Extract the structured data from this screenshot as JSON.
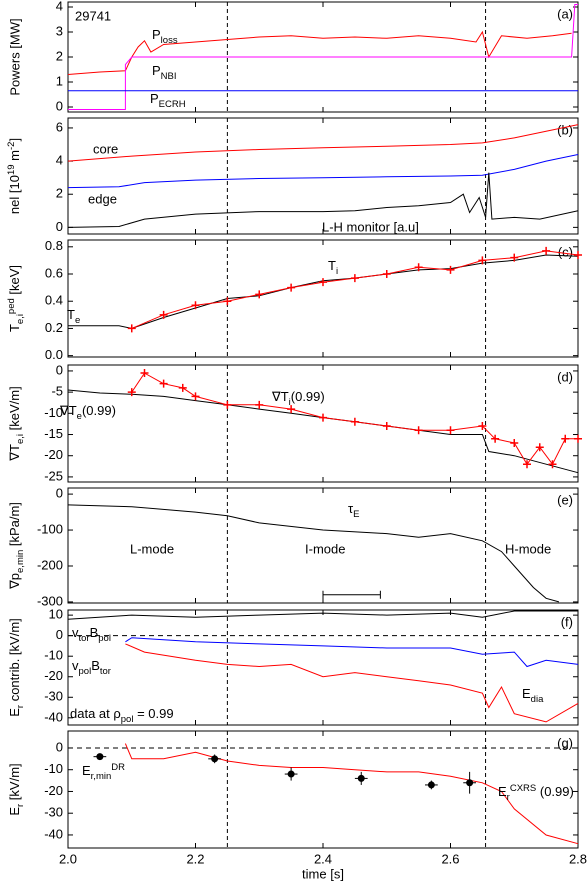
{
  "chart_data": [
    {
      "type": "line",
      "label": "(a)",
      "ylabel": "Powers [MW]",
      "xlim": [
        2,
        2.8
      ],
      "xticks": [
        2,
        2.2,
        2.4,
        2.6,
        2.8
      ],
      "ylim": [
        -0.2,
        4.2
      ],
      "yticks": [
        0,
        1,
        2,
        3,
        4
      ],
      "vlines": [
        2.25,
        2.655
      ],
      "series": [
        {
          "name": [
            [
              "P"
            ],
            [
              "loss",
              "sub"
            ]
          ],
          "color": "#ff0000",
          "x": [
            2.0,
            2.05,
            2.09,
            2.1,
            2.11,
            2.12,
            2.13,
            2.15,
            2.2,
            2.25,
            2.3,
            2.35,
            2.4,
            2.45,
            2.5,
            2.55,
            2.6,
            2.64,
            2.65,
            2.66,
            2.68,
            2.72,
            2.76,
            2.79
          ],
          "values": [
            1.3,
            1.4,
            1.45,
            2.0,
            2.4,
            2.65,
            2.2,
            2.5,
            2.6,
            2.7,
            2.8,
            2.85,
            2.75,
            2.8,
            2.75,
            2.85,
            2.75,
            2.6,
            3.0,
            2.0,
            2.85,
            2.75,
            2.85,
            2.95
          ]
        },
        {
          "name": [
            [
              "P"
            ],
            [
              "NBI",
              "sub"
            ]
          ],
          "color": "#ff00ff",
          "x": [
            2.0,
            2.09,
            2.09,
            2.1,
            2.79,
            2.795,
            2.8
          ],
          "values": [
            -0.1,
            -0.1,
            1.7,
            2.0,
            2.0,
            4.1,
            4.1
          ]
        },
        {
          "name": [
            [
              "P"
            ],
            [
              "ECRH",
              "sub"
            ]
          ],
          "color": "#0000ff",
          "x": [
            2.0,
            2.8
          ],
          "values": [
            0.65,
            0.65
          ]
        }
      ],
      "annotations": [
        {
          "text": "29741",
          "color": "#000000"
        }
      ]
    },
    {
      "type": "line",
      "label": "(b)",
      "ylabel": [
        [
          "nel [10"
        ],
        [
          "19",
          "sup"
        ],
        [
          " m"
        ],
        [
          "-2",
          "sup"
        ],
        [
          "]"
        ]
      ],
      "xlim": [
        2,
        2.8
      ],
      "xticks": [
        2,
        2.2,
        2.4,
        2.6,
        2.8
      ],
      "ylim": [
        -0.4,
        6.6
      ],
      "yticks": [
        0,
        2,
        4,
        6
      ],
      "vlines": [
        2.25,
        2.655
      ],
      "series": [
        {
          "name": "core",
          "color": "#ff0000",
          "x": [
            2.0,
            2.1,
            2.2,
            2.3,
            2.4,
            2.5,
            2.6,
            2.65,
            2.7,
            2.75,
            2.8
          ],
          "values": [
            4.0,
            4.3,
            4.55,
            4.7,
            4.8,
            4.9,
            5.0,
            5.1,
            5.4,
            5.8,
            6.2
          ]
        },
        {
          "name": "edge",
          "color": "#0000ff",
          "x": [
            2.0,
            2.08,
            2.12,
            2.2,
            2.3,
            2.4,
            2.5,
            2.6,
            2.65,
            2.7,
            2.75,
            2.8
          ],
          "values": [
            2.4,
            2.45,
            2.7,
            2.85,
            2.95,
            3.0,
            3.05,
            3.1,
            3.15,
            3.5,
            4.0,
            4.4
          ]
        },
        {
          "name": "L-H monitor [a.u]",
          "color": "#000000",
          "x": [
            2.0,
            2.08,
            2.12,
            2.2,
            2.3,
            2.4,
            2.45,
            2.5,
            2.55,
            2.6,
            2.62,
            2.63,
            2.645,
            2.655,
            2.66,
            2.665,
            2.7,
            2.74,
            2.8
          ],
          "values": [
            0,
            0.05,
            0.5,
            0.8,
            0.95,
            0.95,
            1.0,
            1.2,
            1.3,
            1.5,
            2.0,
            0.9,
            1.8,
            0.6,
            3.3,
            0.5,
            0.6,
            0.5,
            1.0
          ]
        }
      ]
    },
    {
      "type": "line",
      "label": "(c)",
      "ylabel": [
        [
          "T"
        ],
        [
          "e,i",
          "sub"
        ],
        [
          "ped",
          "sup"
        ],
        [
          " [keV]"
        ]
      ],
      "xlim": [
        2,
        2.8
      ],
      "xticks": [
        2,
        2.2,
        2.4,
        2.6,
        2.8
      ],
      "ylim": [
        -0.01,
        0.85
      ],
      "yticks": [
        {
          "value": 0,
          "label": "0.0"
        },
        {
          "value": 0.2,
          "label": "0.2"
        },
        {
          "value": 0.4,
          "label": "0.4"
        },
        {
          "value": 0.6,
          "label": "0.6"
        },
        {
          "value": 0.8,
          "label": "0.8"
        }
      ],
      "vlines": [
        2.25,
        2.655
      ],
      "series": [
        {
          "name": [
            [
              "T"
            ],
            [
              "e",
              "sub"
            ]
          ],
          "color": "#000000",
          "x": [
            2.0,
            2.08,
            2.1,
            2.15,
            2.2,
            2.25,
            2.3,
            2.35,
            2.4,
            2.45,
            2.5,
            2.55,
            2.6,
            2.65,
            2.7,
            2.75,
            2.8
          ],
          "values": [
            0.22,
            0.22,
            0.2,
            0.28,
            0.35,
            0.42,
            0.44,
            0.5,
            0.55,
            0.57,
            0.6,
            0.63,
            0.64,
            0.68,
            0.7,
            0.74,
            0.73
          ]
        },
        {
          "name": [
            [
              "T"
            ],
            [
              "i",
              "sub"
            ]
          ],
          "color": "#ff0000",
          "marker": "+",
          "x": [
            2.1,
            2.15,
            2.2,
            2.25,
            2.3,
            2.35,
            2.4,
            2.45,
            2.5,
            2.55,
            2.6,
            2.65,
            2.7,
            2.75,
            2.8
          ],
          "values": [
            0.2,
            0.3,
            0.37,
            0.4,
            0.45,
            0.5,
            0.54,
            0.57,
            0.6,
            0.65,
            0.63,
            0.7,
            0.72,
            0.77,
            0.74
          ]
        }
      ]
    },
    {
      "type": "line",
      "label": "(d)",
      "ylabel": [
        [
          "∇T"
        ],
        [
          "e,i",
          "sub"
        ],
        [
          " [keV/m]"
        ]
      ],
      "xlim": [
        2,
        2.8
      ],
      "xticks": [
        2,
        2.2,
        2.4,
        2.6,
        2.8
      ],
      "ylim": [
        -26.2,
        1.4
      ],
      "yticks": [
        0,
        -5,
        -10,
        -15,
        -20,
        -25
      ],
      "vlines": [
        2.25,
        2.655
      ],
      "series": [
        {
          "name": [
            [
              "∇T"
            ],
            [
              "e",
              "sub"
            ],
            [
              "(0.99)"
            ]
          ],
          "color": "#000000",
          "x": [
            2.0,
            2.05,
            2.1,
            2.15,
            2.2,
            2.25,
            2.3,
            2.35,
            2.4,
            2.45,
            2.5,
            2.55,
            2.6,
            2.65,
            2.66,
            2.7,
            2.75,
            2.8
          ],
          "values": [
            -4.5,
            -5.2,
            -5.5,
            -6,
            -7,
            -8,
            -9,
            -10,
            -11,
            -12,
            -13,
            -14,
            -15,
            -15,
            -19,
            -20,
            -22,
            -24
          ]
        },
        {
          "name": [
            [
              "∇T"
            ],
            [
              "i",
              "sub"
            ],
            [
              "(0.99)"
            ]
          ],
          "color": "#ff0000",
          "marker": "+",
          "x": [
            2.1,
            2.12,
            2.15,
            2.18,
            2.2,
            2.25,
            2.3,
            2.35,
            2.4,
            2.45,
            2.5,
            2.55,
            2.6,
            2.65,
            2.67,
            2.7,
            2.72,
            2.74,
            2.76,
            2.78,
            2.8
          ],
          "values": [
            -5,
            -0.5,
            -3,
            -4,
            -6,
            -8,
            -8,
            -9,
            -11,
            -12,
            -13,
            -14,
            -14,
            -13,
            -16,
            -17,
            -22,
            -18,
            -22,
            -16,
            -16
          ]
        }
      ]
    },
    {
      "type": "line",
      "label": "(e)",
      "ylabel": [
        [
          "∇p"
        ],
        [
          "e,min",
          "sub"
        ],
        [
          " [kPa/m]"
        ]
      ],
      "xlim": [
        2,
        2.8
      ],
      "xticks": [
        2,
        2.2,
        2.4,
        2.6,
        2.8
      ],
      "ylim": [
        -303,
        17
      ],
      "yticks": [
        0,
        -100,
        -200,
        -300
      ],
      "vlines": [
        2.25,
        2.655
      ],
      "series": [
        {
          "color": "#000000",
          "x": [
            2.0,
            2.1,
            2.2,
            2.25,
            2.3,
            2.4,
            2.5,
            2.55,
            2.6,
            2.65,
            2.68,
            2.7,
            2.73,
            2.75,
            2.77
          ],
          "values": [
            -30,
            -35,
            -50,
            -60,
            -80,
            -100,
            -110,
            -120,
            -110,
            -130,
            -160,
            -200,
            -260,
            -290,
            -300
          ]
        }
      ],
      "annotations": [
        {
          "text": "L-mode",
          "color": "#000000"
        },
        {
          "text": "I-mode",
          "color": "#000000"
        },
        {
          "text": "H-mode",
          "color": "#000000"
        },
        {
          "text": [
            [
              "τ"
            ],
            [
              "E",
              "sub"
            ]
          ],
          "color": "#000000"
        }
      ],
      "scale_bar": {
        "x": [
          2.4,
          2.49
        ],
        "y": -280
      }
    },
    {
      "type": "line",
      "label": "(f)",
      "ylabel": [
        [
          "E"
        ],
        [
          "r",
          "sub"
        ],
        [
          " contrib. [kV/m]"
        ]
      ],
      "xlim": [
        2,
        2.8
      ],
      "xticks": [
        2,
        2.2,
        2.4,
        2.6,
        2.8
      ],
      "ylim": [
        -43.5,
        12.5
      ],
      "yticks": [
        10,
        0,
        -10,
        -20,
        -30,
        -40
      ],
      "vlines": [
        2.25,
        2.655
      ],
      "hlines": [
        0
      ],
      "series": [
        {
          "name": [
            [
              "v"
            ],
            [
              "tor",
              "sub"
            ],
            [
              "B"
            ],
            [
              "pol",
              "sub"
            ]
          ],
          "color": "#000000",
          "x": [
            2.0,
            2.1,
            2.2,
            2.3,
            2.4,
            2.5,
            2.6,
            2.65,
            2.7,
            2.8
          ],
          "values": [
            8,
            10,
            9,
            10,
            11,
            10,
            11,
            9,
            12,
            12
          ]
        },
        {
          "name": [
            [
              "v"
            ],
            [
              "pol",
              "sub"
            ],
            [
              "B"
            ],
            [
              "tor",
              "sub"
            ]
          ],
          "color": "#ff0000",
          "x": [
            2.09,
            2.12,
            2.2,
            2.25,
            2.3,
            2.35,
            2.4,
            2.45,
            2.5,
            2.55,
            2.6,
            2.65,
            2.66,
            2.68,
            2.7,
            2.75,
            2.8
          ],
          "values": [
            -4,
            -8,
            -12,
            -14,
            -15,
            -14,
            -20,
            -18,
            -20,
            -22,
            -24,
            -28,
            -35,
            -25,
            -38,
            -42,
            -33
          ]
        },
        {
          "name": [
            [
              "E"
            ],
            [
              "dia",
              "sub"
            ]
          ],
          "color": "#0000ff",
          "x": [
            2.09,
            2.1,
            2.2,
            2.3,
            2.4,
            2.5,
            2.6,
            2.65,
            2.7,
            2.72,
            2.75,
            2.8
          ],
          "values": [
            -3,
            -1,
            -3,
            -4,
            -5,
            -6,
            -6,
            -9,
            -8,
            -15,
            -12,
            -14
          ]
        }
      ],
      "annotations": [
        {
          "text": [
            [
              "data at ρ"
            ],
            [
              "pol",
              "sub"
            ],
            [
              " = 0.99"
            ]
          ],
          "color": "#000000"
        }
      ]
    },
    {
      "type": "line",
      "label": "(g)",
      "ylabel": [
        [
          "E"
        ],
        [
          "r",
          "sub"
        ],
        [
          " [kV/m]"
        ]
      ],
      "xlabel": "time [s]",
      "xlim": [
        2,
        2.8
      ],
      "xticks": [
        {
          "value": 2,
          "label": "2.0"
        },
        {
          "value": 2.2,
          "label": "2.2"
        },
        {
          "value": 2.4,
          "label": "2.4"
        },
        {
          "value": 2.6,
          "label": "2.6"
        },
        {
          "value": 2.8,
          "label": "2.8"
        }
      ],
      "ylim": [
        -46,
        7.8
      ],
      "yticks": [
        0,
        -10,
        -20,
        -30,
        -40
      ],
      "vlines": [
        2.25,
        2.655
      ],
      "hlines": [
        0
      ],
      "series": [
        {
          "name": [
            [
              "E"
            ],
            [
              "r",
              "sub"
            ],
            [
              "CXRS",
              "sup"
            ],
            [
              "  (0.99)"
            ]
          ],
          "color": "#ff0000",
          "x": [
            2.09,
            2.1,
            2.15,
            2.2,
            2.25,
            2.3,
            2.35,
            2.4,
            2.45,
            2.5,
            2.55,
            2.6,
            2.65,
            2.68,
            2.7,
            2.75,
            2.8
          ],
          "values": [
            2,
            -5,
            -5,
            -2,
            -6,
            -8,
            -9,
            -9,
            -10,
            -11,
            -11,
            -13,
            -16,
            -20,
            -28,
            -40,
            -44
          ]
        },
        {
          "name": [
            [
              "E"
            ],
            [
              "r,min",
              "sub"
            ],
            [
              "DR",
              "sup"
            ]
          ],
          "color": "#000000",
          "type": "errorbar",
          "x": [
            2.05,
            2.23,
            2.35,
            2.46,
            2.57,
            2.63
          ],
          "values": [
            -4,
            -5,
            -12,
            -14,
            -17,
            -16
          ],
          "errors": [
            1,
            2,
            3,
            3,
            2,
            5
          ],
          "xerrors": [
            0.01,
            0.01,
            0.01,
            0.01,
            0.01,
            0.01
          ]
        }
      ]
    }
  ]
}
